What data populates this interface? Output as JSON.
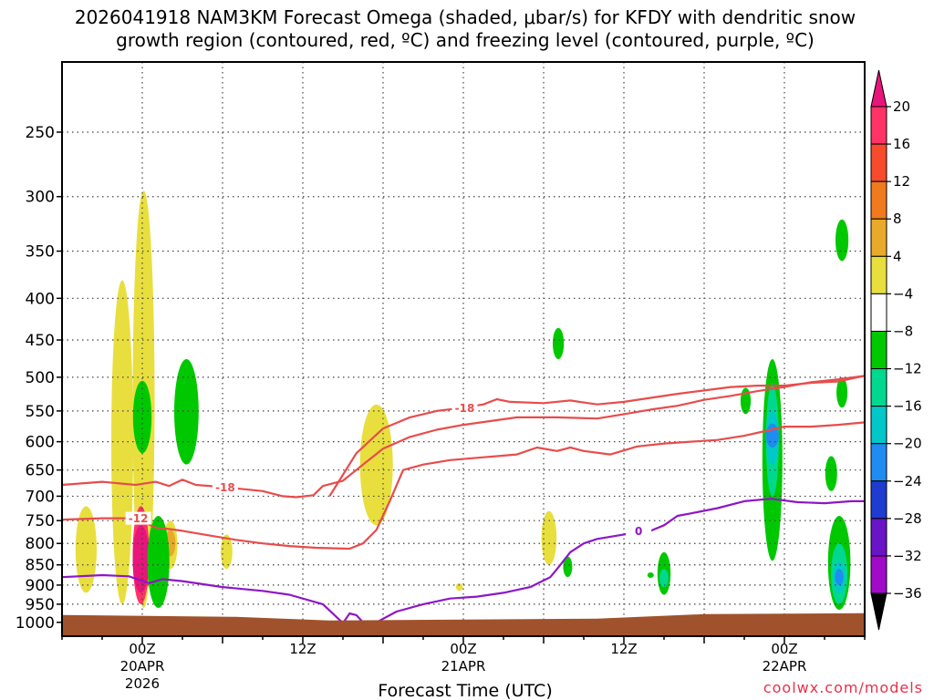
{
  "chart_data": {
    "type": "heatmap",
    "title_line1": "2026041918 NAM3KM Forecast Omega (shaded, μbar/s) for KFDY with dendritic snow",
    "title_line2": "growth region (contoured, red, ºC) and freezing level (contoured, purple, ºC)",
    "xlabel": "Forecast Time (UTC)",
    "ylabel": "",
    "credit": "coolwx.com/models",
    "x_unit": "hours since 2026-04-19 18Z",
    "xlim": [
      0,
      60
    ],
    "y_axis": {
      "label_units": "hPa",
      "scale": "log",
      "inverted": true,
      "range": [
        1000,
        200
      ],
      "ticks": [
        250,
        300,
        350,
        400,
        450,
        500,
        550,
        600,
        650,
        700,
        750,
        800,
        850,
        900,
        950,
        1000
      ]
    },
    "x_ticks": [
      {
        "hour": 6,
        "label": "00Z",
        "sub1": "20APR",
        "sub2": "2026"
      },
      {
        "hour": 18,
        "label": "12Z",
        "sub1": "",
        "sub2": ""
      },
      {
        "hour": 30,
        "label": "00Z",
        "sub1": "21APR",
        "sub2": ""
      },
      {
        "hour": 42,
        "label": "12Z",
        "sub1": "",
        "sub2": ""
      },
      {
        "hour": 54,
        "label": "00Z",
        "sub1": "22APR",
        "sub2": ""
      }
    ],
    "colorbar": {
      "levels": [
        20,
        16,
        12,
        8,
        4,
        -4,
        -8,
        -12,
        -16,
        -20,
        -24,
        -28,
        -32,
        -36
      ],
      "colors": [
        "#ff3366",
        "#f84a2c",
        "#f07a1e",
        "#e9a92a",
        "#e8df3e",
        "#ffffff",
        "#00c800",
        "#00d890",
        "#00c8c8",
        "#1e8cf0",
        "#1e3cd0",
        "#6a14c8",
        "#a00ac8",
        "#a8a8a8"
      ],
      "top_cap_color": "#e8157a",
      "bottom_cap_color": "#000000"
    },
    "surface_color": "#a0522d",
    "omega_regions": [
      {
        "category": "4 to 8",
        "color": "#e8df3e",
        "hour": 4.5,
        "p_top": 380,
        "p_bot": 950
      },
      {
        "category": "4 to 8",
        "color": "#e8df3e",
        "hour": 6.1,
        "p_top": 295,
        "p_bot": 960
      },
      {
        "category": "4 to 8",
        "color": "#e8df3e",
        "hour": 1.8,
        "p_top": 720,
        "p_bot": 920
      },
      {
        "category": "4 to 8",
        "color": "#e8df3e",
        "hour": 8.1,
        "p_top": 750,
        "p_bot": 860
      },
      {
        "category": "4 to 8",
        "color": "#e8df3e",
        "hour": 12.3,
        "p_top": 780,
        "p_bot": 860
      },
      {
        "category": "4 to 8",
        "color": "#e8df3e",
        "hour": 23.5,
        "p_top": 540,
        "p_bot": 760
      },
      {
        "category": "4 to 8",
        "color": "#e8df3e",
        "hour": 29.7,
        "p_top": 895,
        "p_bot": 915
      },
      {
        "category": "4 to 8",
        "color": "#e8df3e",
        "hour": 36.4,
        "p_top": 730,
        "p_bot": 850
      },
      {
        "category": "8 to 12",
        "color": "#e9a92a",
        "hour": 8.1,
        "p_top": 770,
        "p_bot": 830
      },
      {
        "category": ">20",
        "color": "#ff3366",
        "hour": 5.9,
        "p_top": 720,
        "p_bot": 950
      },
      {
        "category": ">20",
        "color": "#e8157a",
        "hour": 5.9,
        "p_top": 760,
        "p_bot": 920
      },
      {
        "category": "-4 to -8",
        "color": "#00c800",
        "hour": 6.0,
        "p_top": 505,
        "p_bot": 620
      },
      {
        "category": "-4 to -8",
        "color": "#00c800",
        "hour": 9.3,
        "p_top": 475,
        "p_bot": 640
      },
      {
        "category": "-4 to -8",
        "color": "#00c800",
        "hour": 7.2,
        "p_top": 740,
        "p_bot": 960
      },
      {
        "category": "-4 to -8",
        "color": "#00c800",
        "hour": 37.1,
        "p_top": 435,
        "p_bot": 475
      },
      {
        "category": "-4 to -8",
        "color": "#00c800",
        "hour": 37.8,
        "p_top": 830,
        "p_bot": 880
      },
      {
        "category": "-4 to -8",
        "color": "#00c800",
        "hour": 44.0,
        "p_top": 870,
        "p_bot": 880
      },
      {
        "category": "-4 to -8",
        "color": "#00c800",
        "hour": 45.0,
        "p_top": 820,
        "p_bot": 925
      },
      {
        "category": "-4 to -8",
        "color": "#00c800",
        "hour": 51.1,
        "p_top": 515,
        "p_bot": 555
      },
      {
        "category": "-4 to -8",
        "color": "#00c800",
        "hour": 53.1,
        "p_top": 475,
        "p_bot": 840
      },
      {
        "category": "-4 to -8",
        "color": "#00c800",
        "hour": 57.5,
        "p_top": 625,
        "p_bot": 690
      },
      {
        "category": "-4 to -8",
        "color": "#00c800",
        "hour": 58.3,
        "p_top": 320,
        "p_bot": 360
      },
      {
        "category": "-4 to -8",
        "color": "#00c800",
        "hour": 58.3,
        "p_top": 500,
        "p_bot": 545
      },
      {
        "category": "-4 to -8",
        "color": "#00c800",
        "hour": 58.1,
        "p_top": 740,
        "p_bot": 965
      },
      {
        "category": "-8 to -12",
        "color": "#00d890",
        "hour": 53.1,
        "p_top": 510,
        "p_bot": 700
      },
      {
        "category": "-8 to -12",
        "color": "#00d890",
        "hour": 58.1,
        "p_top": 800,
        "p_bot": 950
      },
      {
        "category": "-8 to -12",
        "color": "#00d890",
        "hour": 45.0,
        "p_top": 860,
        "p_bot": 905
      },
      {
        "category": "-12 to -16",
        "color": "#00c8c8",
        "hour": 53.1,
        "p_top": 550,
        "p_bot": 640
      },
      {
        "category": "-12 to -16",
        "color": "#00c8c8",
        "hour": 58.1,
        "p_top": 840,
        "p_bot": 920
      },
      {
        "category": "-16 to -20",
        "color": "#1e8cf0",
        "hour": 53.1,
        "p_top": 570,
        "p_bot": 610
      },
      {
        "category": "-16 to -20",
        "color": "#1e8cf0",
        "hour": 58.1,
        "p_top": 860,
        "p_bot": 900
      }
    ],
    "contours": [
      {
        "name": "-18 C isotherm (lower)",
        "color": "#e84c4c",
        "label": "-18",
        "label_hour": 12.2,
        "points": [
          [
            0,
            678
          ],
          [
            3,
            672
          ],
          [
            5.5,
            678
          ],
          [
            7,
            672
          ],
          [
            8,
            680
          ],
          [
            9,
            668
          ],
          [
            10,
            678
          ],
          [
            12,
            682
          ],
          [
            15,
            690
          ],
          [
            16.5,
            700
          ],
          [
            17.5,
            702
          ],
          [
            18.8,
            698
          ],
          [
            19.5,
            680
          ],
          [
            21,
            670
          ],
          [
            22.5,
            640
          ],
          [
            24,
            612
          ],
          [
            26,
            592
          ],
          [
            28,
            580
          ],
          [
            30,
            572
          ],
          [
            32,
            566
          ],
          [
            34,
            560
          ],
          [
            37,
            560
          ],
          [
            40,
            562
          ],
          [
            42,
            555
          ],
          [
            44,
            548
          ],
          [
            46,
            542
          ],
          [
            48,
            533
          ],
          [
            50,
            527
          ],
          [
            52,
            520
          ],
          [
            54,
            514
          ],
          [
            56,
            507
          ],
          [
            58,
            503
          ],
          [
            60,
            498
          ]
        ]
      },
      {
        "name": "-12 C isotherm",
        "color": "#e84c4c",
        "label": "-12",
        "label_hour": 5.7,
        "points": [
          [
            0,
            748
          ],
          [
            3,
            745
          ],
          [
            5.5,
            745
          ],
          [
            7,
            765
          ],
          [
            8,
            768
          ],
          [
            9,
            772
          ],
          [
            11,
            782
          ],
          [
            13,
            792
          ],
          [
            15,
            800
          ],
          [
            17,
            806
          ],
          [
            19,
            810
          ],
          [
            21.5,
            812
          ],
          [
            22.5,
            800
          ],
          [
            23.5,
            770
          ],
          [
            24.5,
            710
          ],
          [
            25.5,
            650
          ],
          [
            27,
            640
          ],
          [
            29,
            632
          ],
          [
            31,
            628
          ],
          [
            34,
            622
          ],
          [
            35.5,
            610
          ],
          [
            37,
            616
          ],
          [
            38,
            610
          ],
          [
            39,
            616
          ],
          [
            41,
            622
          ],
          [
            43,
            608
          ],
          [
            45,
            603
          ],
          [
            47,
            600
          ],
          [
            49,
            597
          ],
          [
            51,
            590
          ],
          [
            53,
            580
          ],
          [
            54,
            575
          ],
          [
            56,
            575
          ],
          [
            58,
            572
          ],
          [
            60,
            568
          ]
        ]
      },
      {
        "name": "-18 C isotherm (upper)",
        "color": "#e84c4c",
        "label": "-18",
        "label_hour": 30.1,
        "points": [
          [
            20,
            700
          ],
          [
            22,
            620
          ],
          [
            24,
            578
          ],
          [
            26,
            560
          ],
          [
            28,
            550
          ],
          [
            30,
            545
          ],
          [
            31.5,
            540
          ],
          [
            32.5,
            532
          ],
          [
            33.5,
            536
          ],
          [
            36,
            538
          ],
          [
            38,
            534
          ],
          [
            40,
            540
          ],
          [
            42,
            536
          ],
          [
            44,
            530
          ],
          [
            46,
            524
          ],
          [
            48,
            519
          ],
          [
            50,
            514
          ],
          [
            52,
            512
          ],
          [
            54,
            512
          ],
          [
            56,
            508
          ],
          [
            58,
            506
          ],
          [
            60,
            498
          ]
        ]
      },
      {
        "name": "0 C freezing level",
        "color": "#8e16c6",
        "label": "0",
        "label_hour": 43.1,
        "points": [
          [
            0,
            880
          ],
          [
            3,
            875
          ],
          [
            5,
            878
          ],
          [
            6.5,
            895
          ],
          [
            7.5,
            885
          ],
          [
            9,
            890
          ],
          [
            12,
            905
          ],
          [
            15,
            915
          ],
          [
            17,
            925
          ],
          [
            19.5,
            950
          ],
          [
            21,
            1002
          ],
          [
            21.5,
            975
          ],
          [
            22,
            980
          ],
          [
            22.5,
            1000
          ],
          [
            23.5,
            1000
          ],
          [
            25,
            970
          ],
          [
            27,
            950
          ],
          [
            29,
            935
          ],
          [
            31,
            930
          ],
          [
            33,
            920
          ],
          [
            35,
            905
          ],
          [
            36.5,
            880
          ],
          [
            37,
            860
          ],
          [
            37.5,
            840
          ],
          [
            38,
            820
          ],
          [
            39,
            800
          ],
          [
            40,
            790
          ],
          [
            42,
            780
          ],
          [
            44,
            772
          ],
          [
            45,
            760
          ],
          [
            46,
            740
          ],
          [
            47,
            735
          ],
          [
            49,
            724
          ],
          [
            51,
            710
          ],
          [
            53,
            705
          ],
          [
            55,
            712
          ],
          [
            57,
            714
          ],
          [
            59,
            710
          ],
          [
            60,
            710
          ]
        ]
      }
    ]
  }
}
